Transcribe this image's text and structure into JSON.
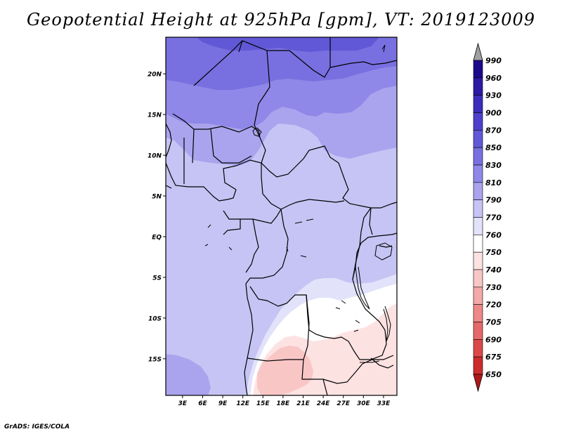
{
  "title": "Geopotential Height at 925hPa [gpm], VT: 2019123009",
  "credit": "GrADS: IGES/COLA",
  "map": {
    "lat_labels": [
      "20N",
      "15N",
      "10N",
      "5N",
      "EQ",
      "5S",
      "10S",
      "15S"
    ],
    "lon_labels": [
      "3E",
      "6E",
      "9E",
      "12E",
      "15E",
      "18E",
      "21E",
      "24E",
      "27E",
      "30E",
      "33E"
    ],
    "lon_range": [
      0.5,
      35
    ],
    "lat_range": [
      -19.5,
      24.5
    ]
  },
  "legend": {
    "levels": [
      "990",
      "960",
      "930",
      "900",
      "870",
      "850",
      "830",
      "810",
      "790",
      "770",
      "760",
      "750",
      "740",
      "730",
      "720",
      "705",
      "690",
      "675",
      "650"
    ],
    "colors": {
      "top_arrow": "#a0a0a0",
      "bottom_arrow": "#b01818",
      "bins": [
        "#1a0a8a",
        "#2a1aa4",
        "#3c2cbc",
        "#4e40cc",
        "#6058d6",
        "#7870e0",
        "#9088e8",
        "#aaa4ee",
        "#c6c4f4",
        "#e2e2fa",
        "#ffffff",
        "#fde2e2",
        "#f9c6c6",
        "#f4a8a8",
        "#ee8888",
        "#e66868",
        "#dc4848",
        "#cc2c2c"
      ]
    }
  },
  "field_colors": {
    "z870": "#6058d6",
    "z850": "#7870e0",
    "z830": "#9088e8",
    "z810": "#aaa4ee",
    "z790": "#c6c4f4",
    "z770": "#e2e2fa",
    "z760": "#ffffff",
    "z750": "#fde2e2",
    "z740": "#f9c6c6"
  }
}
